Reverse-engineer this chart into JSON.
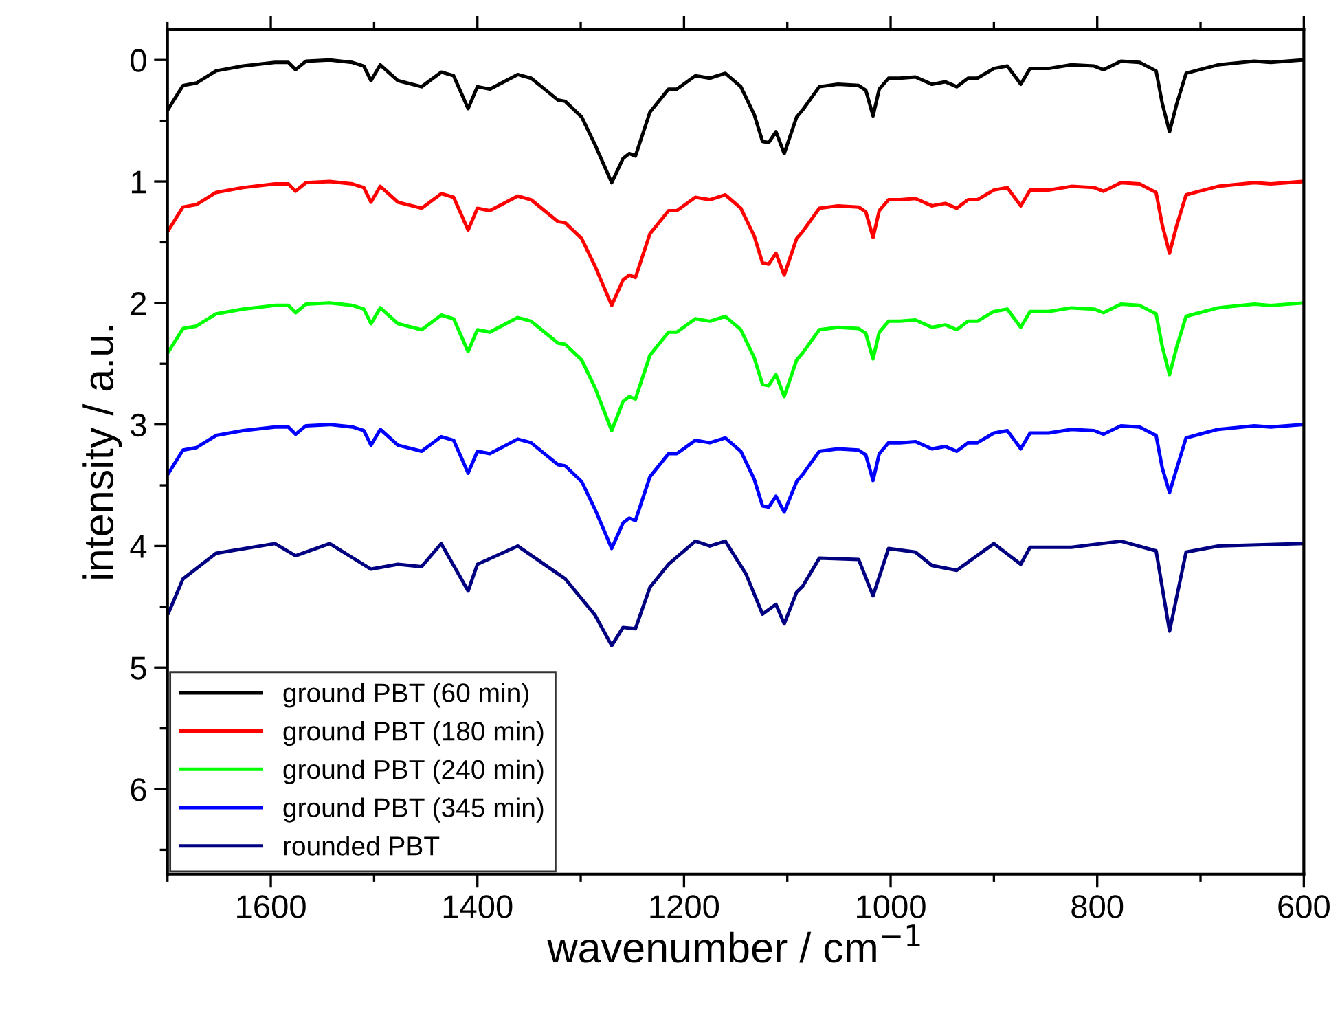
{
  "chart_data": {
    "type": "line",
    "xlabel": "wavenumber / cm$^{−1}$",
    "ylabel": "intensity / a.u.",
    "x": [
      1699,
      1685,
      1672,
      1653,
      1627,
      1596,
      1583,
      1576,
      1566,
      1543,
      1521,
      1510,
      1503,
      1494,
      1477,
      1454,
      1435,
      1423,
      1409,
      1400,
      1388,
      1361,
      1348,
      1335,
      1322,
      1315,
      1299,
      1286,
      1270,
      1259,
      1253,
      1247,
      1233,
      1215,
      1207,
      1189,
      1175,
      1160,
      1145,
      1132,
      1124,
      1118,
      1111,
      1103,
      1091,
      1085,
      1069,
      1051,
      1031,
      1024,
      1017,
      1011,
      1002,
      991,
      976,
      960,
      947,
      936,
      925,
      916,
      900,
      887,
      874,
      865,
      847,
      825,
      803,
      794,
      777,
      759,
      743,
      737,
      730,
      723,
      714,
      701,
      683,
      648,
      632,
      601
    ],
    "series": [
      {
        "name": "ground PBT (60 min)",
        "color": "#000000",
        "values": [
          0.4,
          0.21,
          0.19,
          0.09,
          0.05,
          0.02,
          0.02,
          0.08,
          0.01,
          0.0,
          0.02,
          0.05,
          0.17,
          0.04,
          0.17,
          0.22,
          0.1,
          0.13,
          0.4,
          0.22,
          0.24,
          0.12,
          0.15,
          0.24,
          0.33,
          0.34,
          0.47,
          0.7,
          1.01,
          0.81,
          0.77,
          0.79,
          0.43,
          0.24,
          0.24,
          0.13,
          0.15,
          0.11,
          0.22,
          0.45,
          0.67,
          0.68,
          0.59,
          0.77,
          0.47,
          0.41,
          0.22,
          0.2,
          0.21,
          0.25,
          0.46,
          0.24,
          0.15,
          0.15,
          0.14,
          0.2,
          0.18,
          0.22,
          0.15,
          0.15,
          0.07,
          0.05,
          0.2,
          0.07,
          0.07,
          0.04,
          0.05,
          0.08,
          0.01,
          0.02,
          0.09,
          0.36,
          0.59,
          0.36,
          0.11,
          0.08,
          0.04,
          0.01,
          0.02,
          0.0
        ]
      },
      {
        "name": "ground PBT (180 min)",
        "color": "#ff0000",
        "values": [
          1.4,
          1.21,
          1.19,
          1.09,
          1.05,
          1.02,
          1.02,
          1.08,
          1.01,
          1.0,
          1.02,
          1.05,
          1.17,
          1.04,
          1.17,
          1.22,
          1.1,
          1.13,
          1.4,
          1.22,
          1.24,
          1.12,
          1.15,
          1.24,
          1.33,
          1.34,
          1.47,
          1.7,
          2.02,
          1.81,
          1.77,
          1.79,
          1.43,
          1.24,
          1.24,
          1.13,
          1.15,
          1.11,
          1.22,
          1.45,
          1.67,
          1.68,
          1.59,
          1.77,
          1.47,
          1.41,
          1.22,
          1.2,
          1.21,
          1.25,
          1.46,
          1.24,
          1.15,
          1.15,
          1.14,
          1.2,
          1.18,
          1.22,
          1.15,
          1.15,
          1.07,
          1.05,
          1.2,
          1.07,
          1.07,
          1.04,
          1.05,
          1.08,
          1.01,
          1.02,
          1.09,
          1.36,
          1.59,
          1.36,
          1.11,
          1.08,
          1.04,
          1.01,
          1.02,
          1.0
        ]
      },
      {
        "name": "ground PBT (240 min)",
        "color": "#00ff00",
        "values": [
          2.4,
          2.21,
          2.19,
          2.09,
          2.05,
          2.02,
          2.02,
          2.08,
          2.01,
          2.0,
          2.02,
          2.05,
          2.17,
          2.04,
          2.17,
          2.22,
          2.1,
          2.13,
          2.4,
          2.22,
          2.24,
          2.12,
          2.15,
          2.24,
          2.33,
          2.34,
          2.47,
          2.7,
          3.05,
          2.81,
          2.77,
          2.79,
          2.43,
          2.24,
          2.24,
          2.13,
          2.15,
          2.11,
          2.22,
          2.45,
          2.67,
          2.68,
          2.59,
          2.77,
          2.47,
          2.41,
          2.22,
          2.2,
          2.21,
          2.25,
          2.46,
          2.24,
          2.15,
          2.15,
          2.14,
          2.2,
          2.18,
          2.22,
          2.15,
          2.15,
          2.07,
          2.05,
          2.2,
          2.07,
          2.07,
          2.04,
          2.05,
          2.08,
          2.01,
          2.02,
          2.09,
          2.36,
          2.59,
          2.36,
          2.11,
          2.08,
          2.04,
          2.01,
          2.02,
          2.0
        ]
      },
      {
        "name": "ground PBT (345 min)",
        "color": "#0000ff",
        "values": [
          3.4,
          3.21,
          3.19,
          3.09,
          3.05,
          3.02,
          3.02,
          3.08,
          3.01,
          3.0,
          3.02,
          3.05,
          3.17,
          3.04,
          3.17,
          3.22,
          3.1,
          3.13,
          3.4,
          3.22,
          3.24,
          3.12,
          3.15,
          3.24,
          3.33,
          3.34,
          3.47,
          3.7,
          4.02,
          3.81,
          3.77,
          3.79,
          3.43,
          3.24,
          3.24,
          3.13,
          3.15,
          3.11,
          3.22,
          3.45,
          3.67,
          3.68,
          3.59,
          3.72,
          3.47,
          3.41,
          3.22,
          3.2,
          3.21,
          3.25,
          3.46,
          3.24,
          3.15,
          3.15,
          3.14,
          3.2,
          3.18,
          3.22,
          3.15,
          3.15,
          3.07,
          3.05,
          3.2,
          3.07,
          3.07,
          3.04,
          3.05,
          3.08,
          3.01,
          3.02,
          3.09,
          3.36,
          3.56,
          3.36,
          3.11,
          3.08,
          3.04,
          3.01,
          3.02,
          3.0
        ]
      },
      {
        "name": "rounded PBT",
        "color": "#000080",
        "x": [
          1699,
          1685,
          1653,
          1596,
          1576,
          1543,
          1503,
          1477,
          1454,
          1435,
          1409,
          1400,
          1361,
          1315,
          1286,
          1270,
          1259,
          1247,
          1233,
          1215,
          1189,
          1175,
          1160,
          1140,
          1124,
          1111,
          1103,
          1091,
          1085,
          1069,
          1031,
          1017,
          1002,
          976,
          960,
          936,
          900,
          874,
          865,
          825,
          777,
          743,
          730,
          714,
          683,
          601
        ],
        "values": [
          4.55,
          4.27,
          4.06,
          3.98,
          4.08,
          3.98,
          4.19,
          4.15,
          4.17,
          3.98,
          4.37,
          4.15,
          4.0,
          4.27,
          4.57,
          4.82,
          4.67,
          4.68,
          4.34,
          4.15,
          3.96,
          4.0,
          3.96,
          4.23,
          4.56,
          4.48,
          4.64,
          4.38,
          4.33,
          4.1,
          4.11,
          4.41,
          4.02,
          4.05,
          4.16,
          4.2,
          3.98,
          4.15,
          4.01,
          4.01,
          3.96,
          4.04,
          4.7,
          4.05,
          4.0,
          3.98
        ]
      }
    ],
    "xlim": [
      1700,
      600
    ],
    "xticks": [
      {
        "value": 1700,
        "label": null
      },
      1600,
      {
        "value": 1500,
        "label": null
      },
      1400,
      {
        "value": 1300,
        "label": null
      },
      1200,
      {
        "value": 1100,
        "label": null
      },
      1000,
      {
        "value": 900,
        "label": null
      },
      800,
      {
        "value": 700,
        "label": null
      },
      600
    ],
    "ylim": [
      6.7,
      -0.25
    ],
    "yticks": [
      0,
      {
        "value": 0.5,
        "label": null
      },
      1,
      {
        "value": 1.5,
        "label": null
      },
      2,
      {
        "value": 2.5,
        "label": null
      },
      3,
      {
        "value": 3.5,
        "label": null
      },
      4,
      {
        "value": 4.5,
        "label": null
      },
      5,
      {
        "value": 5.5,
        "label": null
      },
      6,
      {
        "value": 6.5,
        "label": null
      }
    ],
    "grid": false,
    "legend": "bottom left",
    "line_style": "solid",
    "marker": "none"
  }
}
